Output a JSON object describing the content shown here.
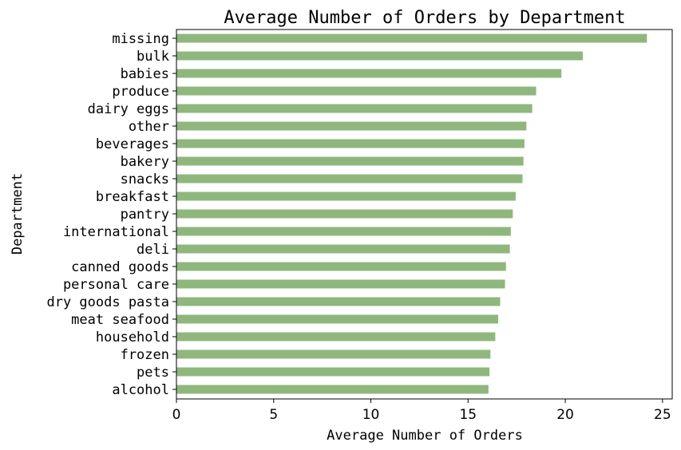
{
  "chart_data": {
    "type": "bar",
    "orientation": "horizontal",
    "title": "Average Number of Orders by Department",
    "xlabel": "Average Number of Orders",
    "ylabel": "Department",
    "xlim": [
      0,
      25.5
    ],
    "xticks": [
      0,
      5,
      10,
      15,
      20,
      25
    ],
    "grid": false,
    "bar_color": "#8fb77d",
    "categories": [
      "missing",
      "bulk",
      "babies",
      "produce",
      "dairy eggs",
      "other",
      "beverages",
      "bakery",
      "snacks",
      "breakfast",
      "pantry",
      "international",
      "deli",
      "canned goods",
      "personal care",
      "dry goods pasta",
      "meat seafood",
      "household",
      "frozen",
      "pets",
      "alcohol"
    ],
    "values": [
      24.2,
      20.9,
      19.8,
      18.5,
      18.3,
      18.0,
      17.9,
      17.85,
      17.8,
      17.45,
      17.3,
      17.2,
      17.15,
      16.95,
      16.9,
      16.65,
      16.55,
      16.4,
      16.15,
      16.1,
      16.05
    ]
  }
}
